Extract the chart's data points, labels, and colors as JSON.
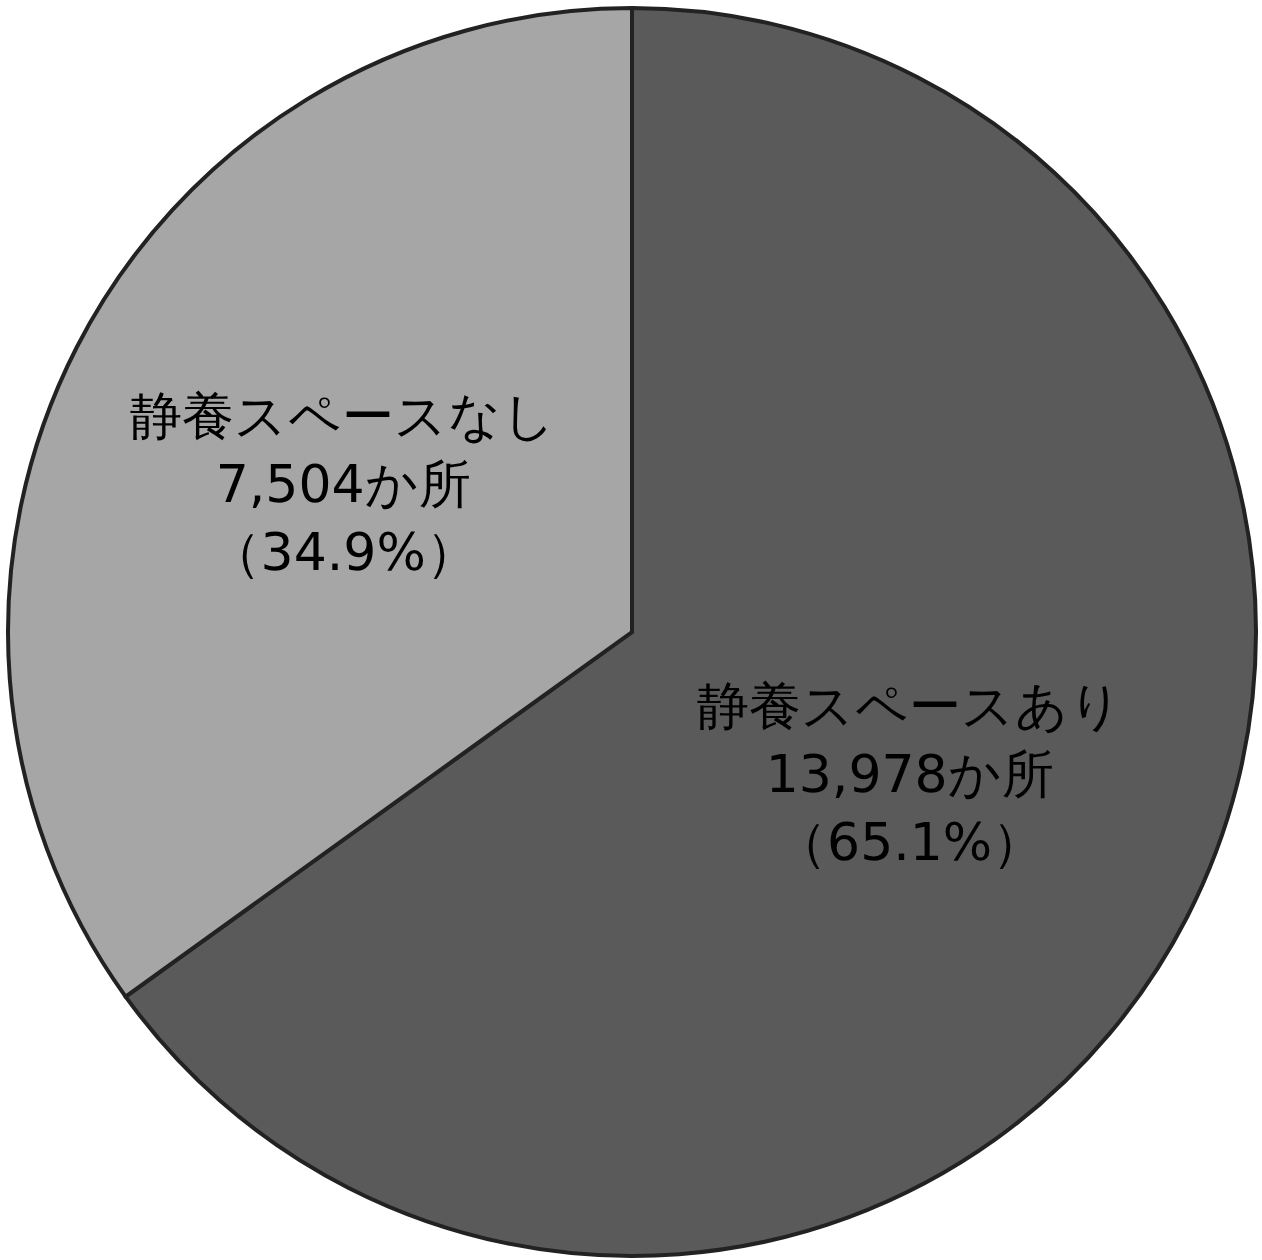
{
  "chart_data": {
    "type": "pie",
    "categories": [
      "静養スペースあり",
      "静養スペースなし"
    ],
    "values": [
      13978,
      7504
    ],
    "colors": [
      "#5a5a5a",
      "#a6a6a6"
    ],
    "value_labels": [
      "13,978か所",
      "7,504か所"
    ],
    "annotations": [
      "（65.1%）",
      "（34.9%）"
    ]
  }
}
